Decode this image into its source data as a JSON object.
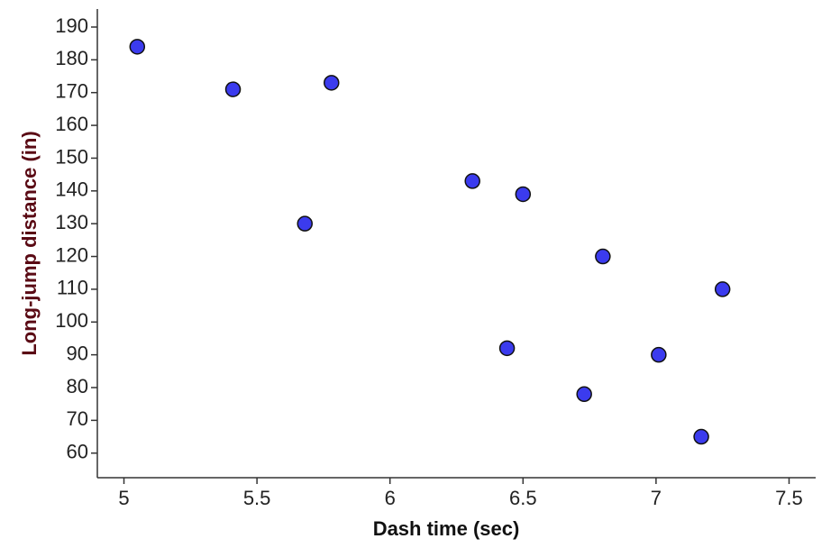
{
  "chart_data": {
    "type": "scatter",
    "x_label": "Dash time (sec)",
    "y_label": "Long-jump distance (in)",
    "x": [
      5.05,
      5.41,
      5.78,
      5.68,
      6.31,
      6.5,
      6.8,
      7.25,
      6.44,
      7.01,
      6.73,
      7.17
    ],
    "values": [
      184,
      171,
      173,
      130,
      143,
      139,
      120,
      110,
      92,
      90,
      78,
      65
    ],
    "color": "#3b3bee",
    "xlim": [
      4.9,
      7.6
    ],
    "xticks": [
      5,
      5.5,
      6,
      6.5,
      7,
      7.5
    ],
    "ylim": [
      52.5,
      195.5
    ],
    "yticks": [
      60,
      70,
      80,
      90,
      100,
      110,
      120,
      130,
      140,
      150,
      160,
      170,
      180,
      190
    ]
  }
}
